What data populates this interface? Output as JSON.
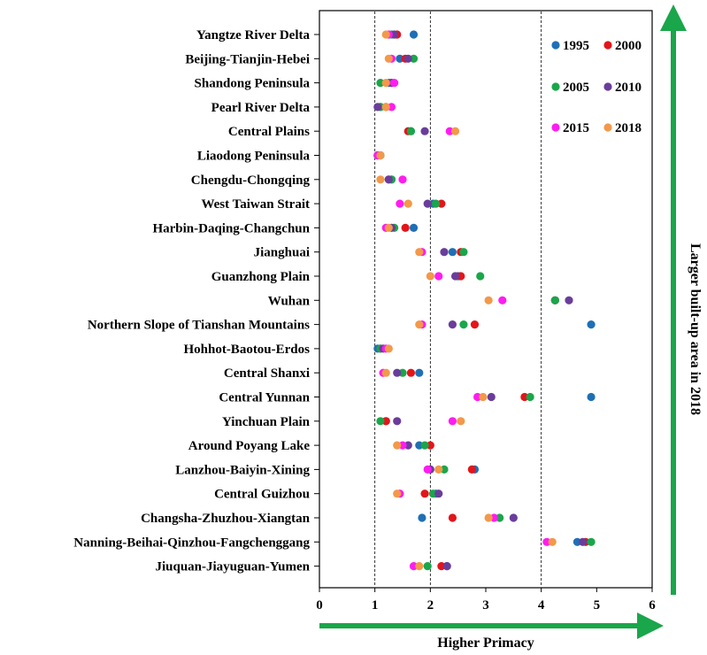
{
  "chart_data": {
    "type": "scatter",
    "xlabel": "Higher Primacy",
    "ylabel": "Larger built-up area in 2018",
    "xlim": [
      0,
      6
    ],
    "xticks": [
      0,
      1,
      2,
      3,
      4,
      5,
      6
    ],
    "reference_lines": [
      1,
      2,
      4
    ],
    "grid": false,
    "legend_position": "top-right",
    "categories": [
      "Yangtze River Delta",
      "Beijing-Tianjin-Hebei",
      "Shandong Peninsula",
      "Pearl River Delta",
      "Central Plains",
      "Liaodong Peninsula",
      "Chengdu-Chongqing",
      "West Taiwan Strait",
      "Harbin-Daqing-Changchun",
      "Jianghuai",
      "Guanzhong Plain",
      "Wuhan",
      "Northern Slope of Tianshan Mountains",
      "Hohhot-Baotou-Erdos",
      "Central Shanxi",
      "Central Yunnan",
      "Yinchuan Plain",
      "Around Poyang Lake",
      "Lanzhou-Baiyin-Xining",
      "Central Guizhou",
      "Changsha-Zhuzhou-Xiangtan",
      "Nanning-Beihai-Qinzhou-Fangchenggang",
      "Jiuquan-Jiayuguan-Yumen"
    ],
    "series": [
      {
        "name": "1995",
        "color": "#1f6fb5",
        "values": [
          1.7,
          1.45,
          1.25,
          1.1,
          1.65,
          1.05,
          1.3,
          2.05,
          1.7,
          2.4,
          2.5,
          4.25,
          4.9,
          1.05,
          1.8,
          4.9,
          1.2,
          1.8,
          2.8,
          2.1,
          1.85,
          4.65,
          2.3
        ]
      },
      {
        "name": "2000",
        "color": "#e3151a",
        "values": [
          1.4,
          1.55,
          1.3,
          1.2,
          1.6,
          1.1,
          1.25,
          2.2,
          1.55,
          2.55,
          2.55,
          4.25,
          2.8,
          1.1,
          1.65,
          3.7,
          1.2,
          2.0,
          2.75,
          1.9,
          2.4,
          4.8,
          2.2
        ]
      },
      {
        "name": "2005",
        "color": "#1aa64a",
        "values": [
          1.3,
          1.7,
          1.1,
          1.1,
          1.65,
          1.1,
          1.3,
          2.1,
          1.35,
          2.6,
          2.9,
          4.25,
          2.6,
          1.1,
          1.5,
          3.8,
          1.1,
          1.9,
          2.25,
          2.05,
          3.25,
          4.9,
          1.95
        ]
      },
      {
        "name": "2010",
        "color": "#6a3d9a",
        "values": [
          1.35,
          1.6,
          1.3,
          1.05,
          1.9,
          1.05,
          1.25,
          1.95,
          1.3,
          2.25,
          2.45,
          4.5,
          2.4,
          1.15,
          1.4,
          3.1,
          1.4,
          1.6,
          2.0,
          2.15,
          3.5,
          4.75,
          2.3
        ]
      },
      {
        "name": "2015",
        "color": "#ff1cf0",
        "values": [
          1.25,
          1.3,
          1.35,
          1.3,
          2.35,
          1.05,
          1.5,
          1.45,
          1.2,
          1.85,
          2.15,
          3.3,
          1.85,
          1.2,
          1.15,
          2.85,
          2.4,
          1.5,
          1.95,
          1.45,
          3.15,
          4.1,
          1.7
        ]
      },
      {
        "name": "2018",
        "color": "#f2994a",
        "values": [
          1.2,
          1.25,
          1.2,
          1.2,
          2.45,
          1.1,
          1.1,
          1.6,
          1.25,
          1.8,
          2.0,
          3.05,
          1.8,
          1.25,
          1.2,
          2.95,
          2.55,
          1.4,
          2.15,
          1.4,
          3.05,
          4.2,
          1.8
        ]
      }
    ]
  }
}
